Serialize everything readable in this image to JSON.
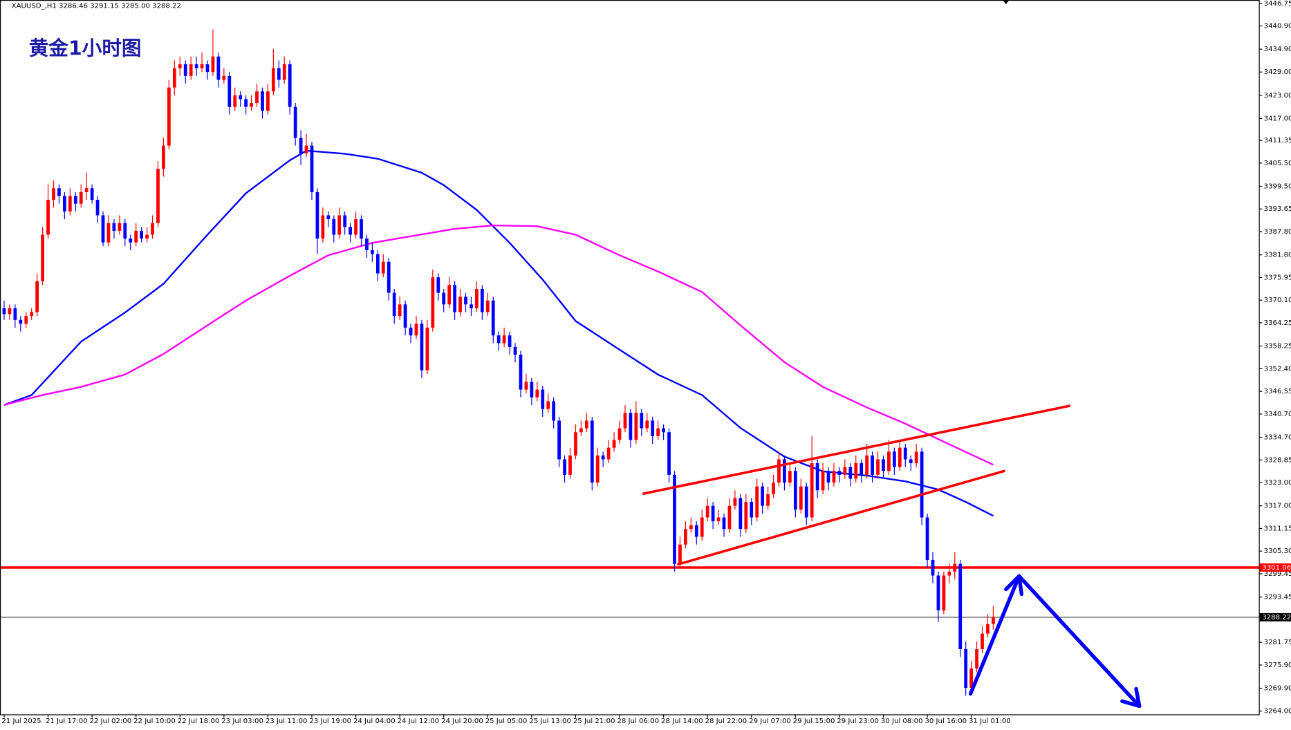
{
  "chart_data": {
    "type": "candlestick",
    "header": "XAUUSD_,H1  3286.46 3291.15 3285.00 3288.22",
    "title": "黄金1小时图",
    "up_color": "#ff0000",
    "down_color": "#0000ff",
    "categories": [
      "21 Jul 2025",
      null,
      null,
      null,
      null,
      null,
      null,
      null,
      "21 Jul 17:00",
      null,
      null,
      null,
      null,
      null,
      null,
      null,
      "22 Jul 02:00",
      null,
      null,
      null,
      null,
      null,
      null,
      null,
      "22 Jul 10:00",
      null,
      null,
      null,
      null,
      null,
      null,
      null,
      "22 Jul 18:00",
      null,
      null,
      null,
      null,
      null,
      null,
      null,
      "23 Jul 03:00",
      null,
      null,
      null,
      null,
      null,
      null,
      null,
      "23 Jul 11:00",
      null,
      null,
      null,
      null,
      null,
      null,
      null,
      "23 Jul 19:00",
      null,
      null,
      null,
      null,
      null,
      null,
      null,
      "24 Jul 04:00",
      null,
      null,
      null,
      null,
      null,
      null,
      null,
      "24 Jul 12:00",
      null,
      null,
      null,
      null,
      null,
      null,
      null,
      "24 Jul 20:00",
      null,
      null,
      null,
      null,
      null,
      null,
      null,
      "25 Jul 05:00",
      null,
      null,
      null,
      null,
      null,
      null,
      null,
      "25 Jul 13:00",
      null,
      null,
      null,
      null,
      null,
      null,
      null,
      "25 Jul 21:00",
      null,
      null,
      null,
      null,
      null,
      null,
      null,
      "28 Jul 06:00",
      null,
      null,
      null,
      null,
      null,
      null,
      null,
      "28 Jul 14:00",
      null,
      null,
      null,
      null,
      null,
      null,
      null,
      "28 Jul 22:00",
      null,
      null,
      null,
      null,
      null,
      null,
      null,
      "29 Jul 07:00",
      null,
      null,
      null,
      null,
      null,
      null,
      null,
      "29 Jul 15:00",
      null,
      null,
      null,
      null,
      null,
      null,
      null,
      "29 Jul 23:00",
      null,
      null,
      null,
      null,
      null,
      null,
      null,
      "30 Jul 08:00",
      null,
      null,
      null,
      null,
      null,
      null,
      null,
      "30 Jul 16:00",
      null,
      null,
      null,
      null,
      null,
      null,
      null,
      "31 Jul 01:00",
      null,
      null,
      null,
      null
    ],
    "ohlc": [
      [
        3368,
        3370,
        3365,
        3366.5
      ],
      [
        3366.5,
        3369,
        3365,
        3368
      ],
      [
        3368,
        3369,
        3363,
        3365
      ],
      [
        3365,
        3366,
        3362,
        3364
      ],
      [
        3364,
        3367,
        3363,
        3366
      ],
      [
        3366,
        3368,
        3365,
        3367
      ],
      [
        3367,
        3377,
        3366,
        3375
      ],
      [
        3375,
        3389,
        3374,
        3387
      ],
      [
        3387,
        3400,
        3386,
        3396
      ],
      [
        3396,
        3401,
        3394,
        3399
      ],
      [
        3399,
        3400,
        3395,
        3397
      ],
      [
        3397,
        3398,
        3391,
        3393
      ],
      [
        3393,
        3399,
        3392,
        3397
      ],
      [
        3397,
        3398,
        3393,
        3395
      ],
      [
        3395,
        3400,
        3394,
        3398
      ],
      [
        3398,
        3403,
        3396,
        3399
      ],
      [
        3399,
        3400,
        3395,
        3396
      ],
      [
        3396,
        3397,
        3390,
        3392
      ],
      [
        3392,
        3393,
        3384,
        3385
      ],
      [
        3385,
        3392,
        3384,
        3390
      ],
      [
        3390,
        3391,
        3386,
        3388
      ],
      [
        3388,
        3392,
        3387,
        3390
      ],
      [
        3390,
        3391,
        3384,
        3386
      ],
      [
        3386,
        3387,
        3383,
        3385
      ],
      [
        3385,
        3390,
        3384,
        3388
      ],
      [
        3388,
        3389,
        3385,
        3386
      ],
      [
        3386,
        3389,
        3385,
        3387
      ],
      [
        3387,
        3392,
        3386,
        3390
      ],
      [
        3390,
        3406,
        3389,
        3404
      ],
      [
        3404,
        3412,
        3402,
        3410
      ],
      [
        3410,
        3427,
        3409,
        3425
      ],
      [
        3425,
        3432,
        3423,
        3430
      ],
      [
        3430,
        3433,
        3428,
        3431
      ],
      [
        3431,
        3432,
        3426,
        3428
      ],
      [
        3428,
        3433,
        3427,
        3431
      ],
      [
        3431,
        3433,
        3428,
        3430
      ],
      [
        3430,
        3434,
        3429,
        3431
      ],
      [
        3431,
        3432,
        3427,
        3429
      ],
      [
        3429,
        3440,
        3428,
        3433
      ],
      [
        3433,
        3434,
        3425,
        3427
      ],
      [
        3427,
        3430,
        3426,
        3428
      ],
      [
        3428,
        3429,
        3418,
        3420
      ],
      [
        3420,
        3425,
        3419,
        3423
      ],
      [
        3423,
        3424,
        3420,
        3422
      ],
      [
        3422,
        3423,
        3418,
        3420
      ],
      [
        3420,
        3423,
        3419,
        3421
      ],
      [
        3421,
        3426,
        3420,
        3424
      ],
      [
        3424,
        3425,
        3417,
        3419
      ],
      [
        3419,
        3426,
        3418,
        3424
      ],
      [
        3424,
        3435,
        3423,
        3430
      ],
      [
        3430,
        3432,
        3425,
        3427
      ],
      [
        3427,
        3433,
        3426,
        3431
      ],
      [
        3431,
        3432,
        3418,
        3420
      ],
      [
        3420,
        3421,
        3410,
        3412
      ],
      [
        3412,
        3414,
        3405,
        3408
      ],
      [
        3408,
        3413,
        3407,
        3410
      ],
      [
        3410,
        3411,
        3396,
        3398
      ],
      [
        3398,
        3399,
        3382,
        3386
      ],
      [
        3386,
        3394,
        3385,
        3392
      ],
      [
        3392,
        3393,
        3389,
        3391
      ],
      [
        3391,
        3392,
        3385,
        3387
      ],
      [
        3387,
        3394,
        3386,
        3392
      ],
      [
        3392,
        3393,
        3387,
        3389
      ],
      [
        3389,
        3390,
        3385,
        3387
      ],
      [
        3387,
        3393,
        3386,
        3391
      ],
      [
        3391,
        3392,
        3384,
        3386
      ],
      [
        3386,
        3387,
        3381,
        3383
      ],
      [
        3383,
        3385,
        3380,
        3382
      ],
      [
        3382,
        3383,
        3375,
        3377
      ],
      [
        3377,
        3382,
        3376,
        3380
      ],
      [
        3380,
        3381,
        3370,
        3372
      ],
      [
        3372,
        3373,
        3364,
        3366
      ],
      [
        3366,
        3371,
        3365,
        3369
      ],
      [
        3369,
        3370,
        3361,
        3363
      ],
      [
        3363,
        3364,
        3359,
        3361
      ],
      [
        3361,
        3366,
        3360,
        3364
      ],
      [
        3364,
        3365,
        3350,
        3352
      ],
      [
        3352,
        3365,
        3351,
        3363
      ],
      [
        3363,
        3378,
        3362,
        3376
      ],
      [
        3376,
        3377,
        3370,
        3372
      ],
      [
        3372,
        3373,
        3367,
        3369
      ],
      [
        3369,
        3376,
        3368,
        3374
      ],
      [
        3374,
        3375,
        3365,
        3367
      ],
      [
        3367,
        3373,
        3366,
        3371
      ],
      [
        3371,
        3372,
        3367,
        3369
      ],
      [
        3369,
        3371,
        3366,
        3368
      ],
      [
        3368,
        3375,
        3367,
        3373
      ],
      [
        3373,
        3374,
        3365,
        3367
      ],
      [
        3367,
        3372,
        3366,
        3370
      ],
      [
        3370,
        3371,
        3359,
        3361
      ],
      [
        3361,
        3362,
        3357,
        3359
      ],
      [
        3359,
        3363,
        3358,
        3361
      ],
      [
        3361,
        3362,
        3356,
        3358
      ],
      [
        3358,
        3359,
        3354,
        3356
      ],
      [
        3356,
        3357,
        3345,
        3347
      ],
      [
        3347,
        3351,
        3346,
        3349
      ],
      [
        3349,
        3350,
        3343,
        3345
      ],
      [
        3345,
        3349,
        3344,
        3347
      ],
      [
        3347,
        3348,
        3340,
        3342
      ],
      [
        3342,
        3346,
        3341,
        3344
      ],
      [
        3344,
        3345,
        3337,
        3339
      ],
      [
        3339,
        3340,
        3327,
        3329
      ],
      [
        3329,
        3330,
        3323,
        3325
      ],
      [
        3325,
        3332,
        3324,
        3330
      ],
      [
        3330,
        3338,
        3329,
        3336
      ],
      [
        3336,
        3339,
        3335,
        3337
      ],
      [
        3337,
        3341,
        3336,
        3339
      ],
      [
        3339,
        3340,
        3321,
        3323
      ],
      [
        3323,
        3332,
        3322,
        3330
      ],
      [
        3330,
        3331,
        3327,
        3329
      ],
      [
        3329,
        3334,
        3328,
        3332
      ],
      [
        3332,
        3336,
        3331,
        3334
      ],
      [
        3334,
        3339,
        3333,
        3337
      ],
      [
        3337,
        3343,
        3336,
        3341
      ],
      [
        3341,
        3342,
        3332,
        3334
      ],
      [
        3334,
        3344,
        3333,
        3341
      ],
      [
        3341,
        3342,
        3335,
        3337
      ],
      [
        3337,
        3341,
        3336,
        3339
      ],
      [
        3339,
        3340,
        3333,
        3335
      ],
      [
        3335,
        3339,
        3334,
        3337
      ],
      [
        3337,
        3338,
        3334,
        3336
      ],
      [
        3336,
        3337,
        3323,
        3325
      ],
      [
        3325,
        3326,
        3300,
        3302
      ],
      [
        3302,
        3309,
        3301,
        3307
      ],
      [
        3307,
        3313,
        3306,
        3311
      ],
      [
        3311,
        3314,
        3310,
        3312
      ],
      [
        3312,
        3313,
        3307,
        3309
      ],
      [
        3309,
        3316,
        3308,
        3314
      ],
      [
        3314,
        3319,
        3313,
        3317
      ],
      [
        3317,
        3318,
        3311,
        3313
      ],
      [
        3313,
        3316,
        3312,
        3314
      ],
      [
        3314,
        3315,
        3309,
        3311
      ],
      [
        3311,
        3319,
        3310,
        3317
      ],
      [
        3317,
        3321,
        3316,
        3319
      ],
      [
        3319,
        3320,
        3309,
        3311
      ],
      [
        3311,
        3320,
        3310,
        3318
      ],
      [
        3318,
        3319,
        3312,
        3314
      ],
      [
        3314,
        3324,
        3313,
        3322
      ],
      [
        3322,
        3323,
        3315,
        3317
      ],
      [
        3317,
        3322,
        3316,
        3320
      ],
      [
        3320,
        3325,
        3319,
        3323
      ],
      [
        3323,
        3331,
        3322,
        3329
      ],
      [
        3329,
        3330,
        3321,
        3323
      ],
      [
        3323,
        3328,
        3322,
        3326
      ],
      [
        3326,
        3327,
        3314,
        3316
      ],
      [
        3316,
        3324,
        3315,
        3322
      ],
      [
        3322,
        3323,
        3312,
        3314
      ],
      [
        3314,
        3335,
        3313,
        3328
      ],
      [
        3328,
        3329,
        3319,
        3321
      ],
      [
        3321,
        3328,
        3320,
        3326
      ],
      [
        3326,
        3327,
        3321,
        3323
      ],
      [
        3323,
        3328,
        3322,
        3326
      ],
      [
        3326,
        3327,
        3323,
        3325
      ],
      [
        3325,
        3329,
        3324,
        3327
      ],
      [
        3327,
        3328,
        3322,
        3324
      ],
      [
        3324,
        3330,
        3323,
        3328
      ],
      [
        3328,
        3329,
        3323,
        3325
      ],
      [
        3325,
        3333,
        3324,
        3330
      ],
      [
        3330,
        3331,
        3323,
        3325
      ],
      [
        3325,
        3331,
        3324,
        3329
      ],
      [
        3329,
        3330,
        3324,
        3326
      ],
      [
        3326,
        3334,
        3325,
        3331
      ],
      [
        3331,
        3332,
        3325,
        3327
      ],
      [
        3327,
        3334,
        3326,
        3332
      ],
      [
        3332,
        3333,
        3327,
        3329
      ],
      [
        3329,
        3330,
        3326,
        3328
      ],
      [
        3328,
        3333,
        3327,
        3331
      ],
      [
        3331,
        3332,
        3312,
        3314
      ],
      [
        3314,
        3315,
        3301,
        3303
      ],
      [
        3303,
        3305,
        3297,
        3299
      ],
      [
        3299,
        3300,
        3287,
        3290
      ],
      [
        3290,
        3300,
        3289,
        3299
      ],
      [
        3299,
        3302,
        3297,
        3300
      ],
      [
        3300,
        3305,
        3298,
        3302
      ],
      [
        3302,
        3303,
        3278,
        3280
      ],
      [
        3280,
        3282,
        3268,
        3270
      ],
      [
        3270,
        3277,
        3269,
        3275
      ],
      [
        3275,
        3282,
        3274,
        3280
      ],
      [
        3280,
        3286,
        3279,
        3284
      ],
      [
        3284,
        3289,
        3283,
        3286.46
      ],
      [
        3286.46,
        3291.15,
        3285,
        3288.22
      ]
    ],
    "moving_averages": [
      {
        "color": "#0000ff",
        "x": [
          0,
          5,
          14,
          22,
          29,
          37,
          44,
          52,
          55,
          62,
          68,
          76,
          80,
          86,
          92,
          98,
          104,
          112,
          119,
          127,
          134,
          142,
          149,
          157,
          164,
          170,
          175,
          180
        ],
        "values": [
          3343.05,
          3345.6,
          3359.4,
          3366.9,
          3374.3,
          3387.0,
          3397.7,
          3406.2,
          3408.7,
          3407.9,
          3406.6,
          3403.0,
          3399.8,
          3393.4,
          3384.9,
          3375.4,
          3364.7,
          3357.3,
          3350.9,
          3345.6,
          3337.1,
          3329.7,
          3325.9,
          3324.8,
          3323.3,
          3321.2,
          3318.0,
          3314.4
        ]
      },
      {
        "color": "#ff00ff",
        "x": [
          0,
          7,
          14,
          22,
          29,
          37,
          44,
          52,
          59,
          67,
          74,
          82,
          89,
          97,
          104,
          112,
          119,
          127,
          134,
          142,
          149,
          157,
          164,
          172,
          180
        ],
        "values": [
          3343.05,
          3345.6,
          3347.7,
          3350.9,
          3356.2,
          3363.6,
          3370.0,
          3376.4,
          3381.7,
          3384.9,
          3386.6,
          3388.5,
          3389.4,
          3389.2,
          3387.0,
          3381.7,
          3377.5,
          3372.2,
          3363.6,
          3354.1,
          3347.7,
          3342.4,
          3338.2,
          3332.9,
          3327.6
        ]
      }
    ],
    "levels": [
      {
        "value": 3301.06,
        "color": "#ff0000",
        "width": 3
      },
      {
        "value": 3288.22,
        "color": "#000000",
        "width": 0.8
      }
    ],
    "ylim": [
      3263.15,
      3447.6
    ],
    "yticks": [
      3446.75,
      {
        "value": 3440.9,
        "label": "3440.90"
      },
      {
        "value": 3434.9,
        "label": "3434.90"
      },
      {
        "value": 3429,
        "label": "3429.00"
      },
      {
        "value": 3423,
        "label": "3423.00"
      },
      {
        "value": 3417,
        "label": "3417.00"
      },
      3411.35,
      {
        "value": 3405.5,
        "label": "3405.50"
      },
      {
        "value": 3399.5,
        "label": "3399.50"
      },
      3393.65,
      {
        "value": 3387.8,
        "label": "3387.80"
      },
      {
        "value": 3381.8,
        "label": "3381.80"
      },
      3375.95,
      {
        "value": 3370.1,
        "label": "3370.10"
      },
      3364.25,
      3358.25,
      {
        "value": 3352.4,
        "label": "3352.40"
      },
      3346.55,
      {
        "value": 3340.7,
        "label": "3340.70"
      },
      {
        "value": 3334.7,
        "label": "3334.70"
      },
      3328.85,
      {
        "value": 3323,
        "label": "3323.00"
      },
      {
        "value": 3317,
        "label": "3317.00"
      },
      3311.15,
      {
        "value": 3305.3,
        "label": "3305.30"
      },
      3299.45,
      3293.45,
      3281.75,
      {
        "value": 3275.9,
        "label": "3275.90"
      },
      {
        "value": 3269.9,
        "label": "3269.90"
      },
      {
        "value": 3264,
        "label": "3264.00"
      }
    ]
  }
}
